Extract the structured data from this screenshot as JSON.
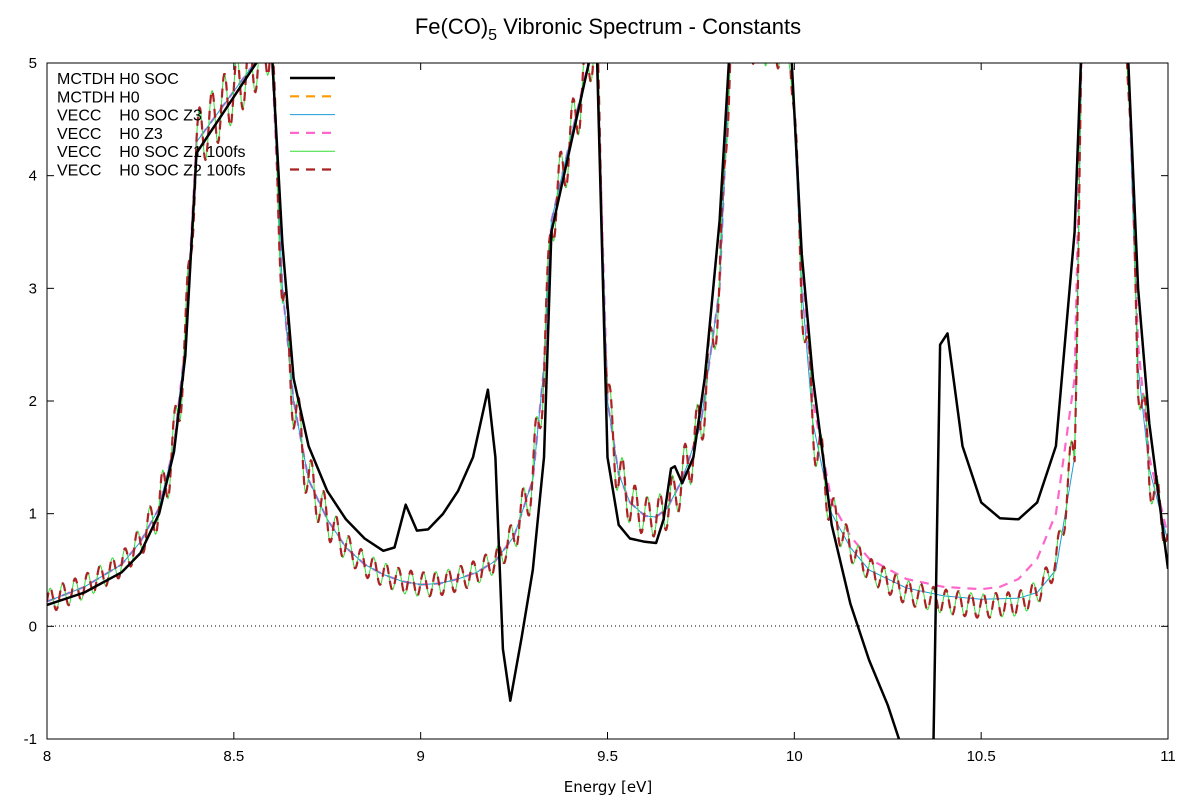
{
  "chart_data": {
    "type": "line",
    "title": "Fe(CO)5 Vibronic Spectrum - Constants",
    "title_parts": {
      "before": "Fe(CO)",
      "subscript": "5",
      "after": " Vibronic Spectrum - Constants"
    },
    "xlabel": "Energy [eV]",
    "ylabel": "",
    "xlim": [
      8,
      11
    ],
    "ylim": [
      -1,
      5
    ],
    "x_ticks": [
      8,
      8.5,
      9,
      9.5,
      10,
      10.5,
      11
    ],
    "x_tick_labels": [
      "8",
      "8.5",
      "9",
      "9.5",
      "10",
      "10.5",
      "11"
    ],
    "y_ticks": [
      -1,
      0,
      1,
      2,
      3,
      4,
      5
    ],
    "y_tick_labels": [
      "-1",
      "0",
      "1",
      "2",
      "3",
      "4",
      "5"
    ],
    "zero_line": true,
    "grid": false,
    "legend_position": "top-left",
    "series": [
      {
        "name": "MCTDH H0 SOC",
        "color": "#000000",
        "style": "solid",
        "x": [
          8.0,
          8.1,
          8.2,
          8.25,
          8.3,
          8.34,
          8.37,
          8.4,
          8.6,
          8.63,
          8.66,
          8.7,
          8.75,
          8.8,
          8.85,
          8.9,
          8.93,
          8.96,
          8.99,
          9.02,
          9.06,
          9.1,
          9.14,
          9.18,
          9.2,
          9.22,
          9.24,
          9.27,
          9.3,
          9.33,
          9.35,
          9.47,
          9.5,
          9.53,
          9.56,
          9.6,
          9.63,
          9.65,
          9.67,
          9.68,
          9.7,
          9.73,
          9.76,
          9.8,
          9.83,
          9.99,
          10.02,
          10.05,
          10.1,
          10.15,
          10.2,
          10.25,
          10.3,
          10.33,
          10.37,
          10.39,
          10.41,
          10.45,
          10.5,
          10.55,
          10.6,
          10.65,
          10.7,
          10.75,
          10.77,
          10.89,
          10.92,
          10.95,
          11.0
        ],
        "y": [
          0.19,
          0.3,
          0.48,
          0.65,
          1.0,
          1.55,
          2.4,
          4.2,
          5.2,
          3.4,
          2.2,
          1.6,
          1.2,
          0.95,
          0.78,
          0.67,
          0.7,
          1.08,
          0.85,
          0.86,
          1.0,
          1.2,
          1.5,
          2.1,
          1.5,
          -0.2,
          -0.66,
          -0.1,
          0.5,
          1.5,
          3.5,
          5.3,
          1.5,
          0.9,
          0.78,
          0.75,
          0.74,
          0.95,
          1.4,
          1.42,
          1.27,
          1.5,
          2.2,
          3.6,
          5.3,
          5.2,
          3.3,
          2.2,
          0.9,
          0.2,
          -0.3,
          -0.7,
          -1.2,
          -1.5,
          -1.5,
          2.5,
          2.6,
          1.6,
          1.1,
          0.96,
          0.95,
          1.1,
          1.6,
          3.5,
          5.3,
          5.3,
          3.0,
          1.8,
          0.51
        ]
      },
      {
        "name": "MCTDH H0",
        "color": "#ff9900",
        "style": "dashed",
        "x": [],
        "y": []
      },
      {
        "name": "VECC    H0 SOC Z3",
        "color": "#1a9dd9",
        "style": "thin",
        "x": [
          8.0,
          8.1,
          8.2,
          8.25,
          8.3,
          8.34,
          8.37,
          8.4,
          8.6,
          8.63,
          8.66,
          8.7,
          8.75,
          8.8,
          8.85,
          8.9,
          8.95,
          9.0,
          9.05,
          9.1,
          9.15,
          9.2,
          9.25,
          9.3,
          9.33,
          9.35,
          9.47,
          9.5,
          9.53,
          9.56,
          9.6,
          9.63,
          9.66,
          9.7,
          9.75,
          9.8,
          9.83,
          9.99,
          10.02,
          10.05,
          10.1,
          10.15,
          10.2,
          10.3,
          10.4,
          10.5,
          10.6,
          10.65,
          10.7,
          10.75,
          10.77,
          10.89,
          10.92,
          10.95,
          11.0
        ],
        "y": [
          0.22,
          0.35,
          0.55,
          0.75,
          1.05,
          1.6,
          2.5,
          4.3,
          5.2,
          3.0,
          2.0,
          1.3,
          0.95,
          0.7,
          0.55,
          0.46,
          0.4,
          0.37,
          0.38,
          0.42,
          0.48,
          0.58,
          0.8,
          1.3,
          2.3,
          3.6,
          5.3,
          2.0,
          1.35,
          1.1,
          0.98,
          0.97,
          1.05,
          1.3,
          1.8,
          3.0,
          5.3,
          5.2,
          3.0,
          1.8,
          1.0,
          0.7,
          0.5,
          0.34,
          0.27,
          0.24,
          0.25,
          0.3,
          0.5,
          1.5,
          5.3,
          5.3,
          2.3,
          1.4,
          0.75
        ]
      },
      {
        "name": "VECC    H0 Z3",
        "color": "#ff66cc",
        "style": "dashed",
        "x": [
          8.0,
          8.1,
          8.2,
          8.25,
          8.3,
          8.34,
          8.37,
          8.4,
          8.6,
          8.63,
          8.66,
          8.7,
          8.75,
          8.8,
          8.85,
          8.9,
          8.95,
          9.0,
          9.05,
          9.1,
          9.15,
          9.2,
          9.25,
          9.3,
          9.33,
          9.35,
          9.47,
          9.5,
          9.53,
          9.56,
          9.6,
          9.63,
          9.66,
          9.7,
          9.75,
          9.8,
          9.83,
          9.99,
          10.02,
          10.05,
          10.1,
          10.15,
          10.2,
          10.3,
          10.4,
          10.5,
          10.55,
          10.6,
          10.65,
          10.7,
          10.75,
          10.77,
          10.89,
          10.92,
          10.95,
          11.0
        ],
        "y": [
          0.22,
          0.35,
          0.55,
          0.75,
          1.05,
          1.6,
          2.5,
          4.3,
          5.2,
          3.0,
          2.0,
          1.3,
          0.95,
          0.7,
          0.55,
          0.46,
          0.4,
          0.37,
          0.38,
          0.42,
          0.48,
          0.58,
          0.8,
          1.3,
          2.3,
          3.6,
          5.3,
          2.0,
          1.35,
          1.1,
          0.98,
          0.97,
          1.05,
          1.3,
          1.8,
          3.0,
          5.3,
          5.2,
          3.2,
          2.0,
          1.1,
          0.8,
          0.6,
          0.42,
          0.35,
          0.33,
          0.35,
          0.42,
          0.6,
          1.0,
          2.2,
          5.3,
          5.3,
          2.5,
          1.5,
          0.8
        ]
      },
      {
        "name": "VECC    H0 SOC Z1 100fs",
        "color": "#33dd33",
        "style": "thin",
        "x": [
          8.0,
          8.1,
          8.2,
          8.25,
          8.3,
          8.34,
          8.37,
          8.4,
          8.6,
          8.63,
          8.66,
          8.7,
          8.75,
          8.8,
          8.85,
          8.9,
          8.95,
          9.0,
          9.05,
          9.1,
          9.15,
          9.2,
          9.25,
          9.3,
          9.33,
          9.35,
          9.47,
          9.5,
          9.53,
          9.56,
          9.6,
          9.63,
          9.66,
          9.7,
          9.75,
          9.8,
          9.83,
          9.99,
          10.02,
          10.05,
          10.1,
          10.15,
          10.2,
          10.3,
          10.4,
          10.5,
          10.6,
          10.65,
          10.7,
          10.75,
          10.77,
          10.89,
          10.92,
          10.95,
          11.0
        ],
        "y": [
          0.22,
          0.35,
          0.55,
          0.75,
          1.05,
          1.6,
          2.5,
          4.3,
          5.2,
          3.0,
          2.0,
          1.3,
          0.95,
          0.7,
          0.55,
          0.46,
          0.4,
          0.37,
          0.38,
          0.42,
          0.48,
          0.58,
          0.8,
          1.3,
          2.3,
          3.6,
          5.3,
          2.0,
          1.35,
          1.1,
          0.98,
          0.97,
          1.05,
          1.3,
          1.8,
          3.0,
          5.3,
          5.2,
          3.0,
          1.8,
          1.0,
          0.7,
          0.5,
          0.3,
          0.22,
          0.18,
          0.2,
          0.3,
          0.55,
          1.6,
          5.3,
          5.3,
          2.3,
          1.4,
          0.75
        ],
        "oscillation_amplitude": 0.18,
        "oscillation_period_ev": 0.0333
      },
      {
        "name": "VECC    H0 SOC Z2 100fs",
        "color": "#aa2222",
        "style": "dashed",
        "x": [
          8.0,
          8.1,
          8.2,
          8.25,
          8.3,
          8.34,
          8.37,
          8.4,
          8.6,
          8.63,
          8.66,
          8.7,
          8.75,
          8.8,
          8.85,
          8.9,
          8.95,
          9.0,
          9.05,
          9.1,
          9.15,
          9.2,
          9.25,
          9.3,
          9.33,
          9.35,
          9.47,
          9.5,
          9.53,
          9.56,
          9.6,
          9.63,
          9.66,
          9.7,
          9.75,
          9.8,
          9.83,
          9.99,
          10.02,
          10.05,
          10.1,
          10.15,
          10.2,
          10.3,
          10.4,
          10.5,
          10.6,
          10.65,
          10.7,
          10.75,
          10.77,
          10.89,
          10.92,
          10.95,
          11.0
        ],
        "y": [
          0.22,
          0.35,
          0.55,
          0.75,
          1.05,
          1.6,
          2.5,
          4.3,
          5.2,
          3.0,
          2.0,
          1.3,
          0.95,
          0.7,
          0.55,
          0.46,
          0.4,
          0.37,
          0.38,
          0.42,
          0.48,
          0.58,
          0.8,
          1.3,
          2.3,
          3.6,
          5.3,
          2.0,
          1.35,
          1.1,
          0.98,
          0.97,
          1.05,
          1.3,
          1.8,
          3.0,
          5.3,
          5.2,
          3.0,
          1.8,
          1.0,
          0.7,
          0.5,
          0.3,
          0.22,
          0.18,
          0.2,
          0.3,
          0.55,
          1.6,
          5.3,
          5.3,
          2.3,
          1.4,
          0.75
        ],
        "oscillation_amplitude": 0.18,
        "oscillation_period_ev": 0.0333
      }
    ]
  }
}
